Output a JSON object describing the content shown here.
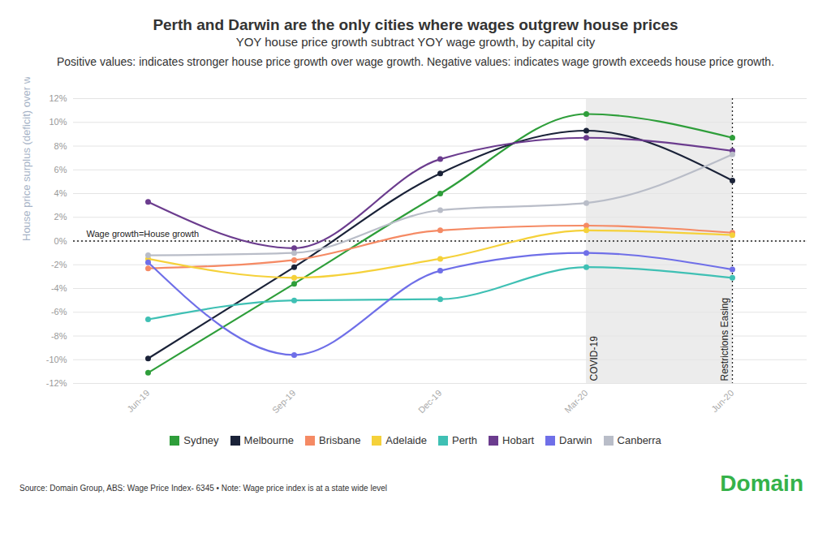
{
  "chart_data": {
    "type": "line",
    "title": "Perth and Darwin are the only cities where wages outgrew house prices",
    "subtitle": "YOY house price growth subtract YOY wage growth, by capital city",
    "description": "Positive values: indicates stronger house price growth over wage growth. Negative values: indicates wage growth exceeds house price growth.",
    "y_label": "House price surplus (deficit) over wages",
    "categories": [
      "Jun-19",
      "Sep-19",
      "Dec-19",
      "Mar-20",
      "Jun-20"
    ],
    "series": [
      {
        "name": "Sydney",
        "color": "#2e9e3a",
        "values": [
          -11.1,
          -3.6,
          4.0,
          10.7,
          8.7
        ]
      },
      {
        "name": "Melbourne",
        "color": "#1a2238",
        "values": [
          -9.9,
          -2.2,
          5.7,
          9.3,
          5.1
        ]
      },
      {
        "name": "Brisbane",
        "color": "#f58a64",
        "values": [
          -2.3,
          -1.6,
          0.9,
          1.3,
          0.7
        ]
      },
      {
        "name": "Adelaide",
        "color": "#f5d13a",
        "values": [
          -1.5,
          -3.1,
          -1.5,
          0.9,
          0.5
        ]
      },
      {
        "name": "Perth",
        "color": "#3fc0b4",
        "values": [
          -6.6,
          -5.0,
          -4.9,
          -2.2,
          -3.1
        ]
      },
      {
        "name": "Hobart",
        "color": "#6b3c8e",
        "values": [
          3.3,
          -0.6,
          6.9,
          8.7,
          7.6
        ]
      },
      {
        "name": "Darwin",
        "color": "#6f6fe8",
        "values": [
          -1.8,
          -9.6,
          -2.5,
          -1.0,
          -2.4
        ]
      },
      {
        "name": "Canberra",
        "color": "#b9bdc8",
        "values": [
          -1.2,
          -1.0,
          2.6,
          3.2,
          7.3
        ]
      }
    ],
    "ylim": [
      -12,
      12
    ],
    "yticks": [
      {
        "value": -12,
        "label": "-12%"
      },
      {
        "value": -10,
        "label": "-10%"
      },
      {
        "value": -8,
        "label": "-8%"
      },
      {
        "value": -6,
        "label": "-6%"
      },
      {
        "value": -4,
        "label": "-4%"
      },
      {
        "value": -2,
        "label": "-2%"
      },
      {
        "value": 0,
        "label": "0%"
      },
      {
        "value": 2,
        "label": "2%"
      },
      {
        "value": 4,
        "label": "4%"
      },
      {
        "value": 6,
        "label": "6%"
      },
      {
        "value": 8,
        "label": "8%"
      },
      {
        "value": 10,
        "label": "10%"
      },
      {
        "value": 12,
        "label": "12%"
      }
    ],
    "grid": true,
    "legend": "bottom",
    "marker": "circle",
    "line_style": "smooth",
    "annotations": [
      {
        "text": "Wage growth=House growth",
        "y": 0
      },
      {
        "text": "COVID-19",
        "x": "Mar-20"
      },
      {
        "text": "Restrictions Easing",
        "x": "Jun-20"
      }
    ],
    "shaded_range": [
      "Mar-20",
      "Jun-20"
    ],
    "source": "Source: Domain Group, ABS: Wage Price Index- 6345 • Note: Wage price index is at a state wide level",
    "logo": "Domain"
  }
}
